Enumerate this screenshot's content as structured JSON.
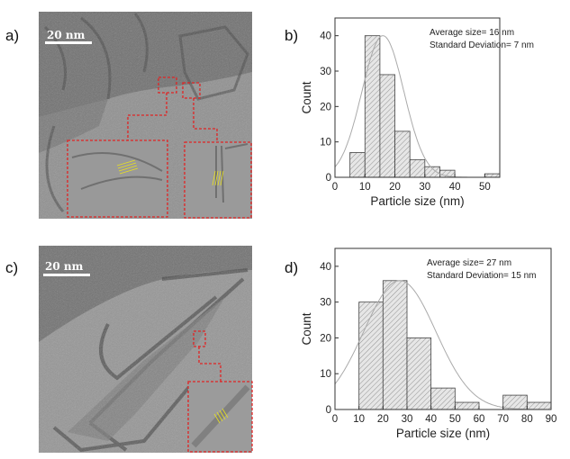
{
  "panels": {
    "a": {
      "label": "a)",
      "scale_bar": "20 nm"
    },
    "b": {
      "label": "b)"
    },
    "c": {
      "label": "c)",
      "scale_bar": "20 nm"
    },
    "d": {
      "label": "d)"
    }
  },
  "colors": {
    "inset_border": "#e02424",
    "lattice_fringes": "#e8e020",
    "fit_curve": "#aaaaaa",
    "bar_fill": "#e6e6e6"
  },
  "chart_data": [
    {
      "panel": "b",
      "type": "bar",
      "subtype": "histogram",
      "xlabel": "Particle size (nm)",
      "ylabel": "Count",
      "annotations": [
        "Average size= 16 nm",
        "Standard Deviation= 7 nm"
      ],
      "bins": [
        [
          5,
          10
        ],
        [
          10,
          15
        ],
        [
          15,
          20
        ],
        [
          20,
          25
        ],
        [
          25,
          30
        ],
        [
          30,
          35
        ],
        [
          35,
          40
        ],
        [
          50,
          55
        ]
      ],
      "values": [
        7,
        40,
        29,
        13,
        5,
        3,
        2,
        1
      ],
      "fit": {
        "type": "gaussian",
        "mean": 16,
        "sd": 7,
        "peak": 40
      },
      "xlim": [
        0,
        55
      ],
      "ylim": [
        0,
        45
      ],
      "xticks": [
        0,
        10,
        20,
        30,
        40,
        50
      ],
      "yticks": [
        0,
        10,
        20,
        30,
        40
      ],
      "grid": false
    },
    {
      "panel": "d",
      "type": "bar",
      "subtype": "histogram",
      "xlabel": "Particle size (nm)",
      "ylabel": "Count",
      "annotations": [
        "Average size= 27 nm",
        "Standard Deviation= 15 nm"
      ],
      "bins": [
        [
          10,
          20
        ],
        [
          20,
          30
        ],
        [
          30,
          40
        ],
        [
          40,
          50
        ],
        [
          50,
          60
        ],
        [
          70,
          80
        ],
        [
          80,
          90
        ]
      ],
      "values": [
        30,
        36,
        20,
        6,
        2,
        4,
        2
      ],
      "fit": {
        "type": "gaussian",
        "mean": 27,
        "sd": 15,
        "peak": 36
      },
      "xlim": [
        0,
        90
      ],
      "ylim": [
        0,
        45
      ],
      "xticks": [
        0,
        10,
        20,
        30,
        40,
        50,
        60,
        70,
        80,
        90
      ],
      "yticks": [
        0,
        10,
        20,
        30,
        40
      ],
      "grid": false
    }
  ]
}
